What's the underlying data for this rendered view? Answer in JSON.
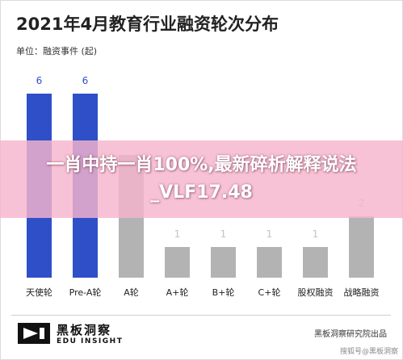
{
  "chart_data": {
    "type": "bar",
    "title": "2021年4月教育行业融资轮次分布",
    "unit_label": "单位：融资事件 (起)",
    "categories": [
      "天使轮",
      "Pre-A轮",
      "A轮",
      "A+轮",
      "B+轮",
      "C+轮",
      "股权融资",
      "战略融资"
    ],
    "values": [
      6,
      6,
      4,
      1,
      1,
      1,
      1,
      2
    ],
    "value_labels": [
      "6",
      "6",
      "",
      "1",
      "1",
      "1",
      "1",
      "2"
    ],
    "ylim": [
      0,
      6
    ],
    "grid": false,
    "colors": {
      "highlight": "#2f4fc8",
      "normal": "#b3b3b3",
      "label_highlight": "#2f4fc8",
      "label_normal": "#c4c4c4"
    },
    "highlight_indices": [
      0,
      1
    ]
  },
  "banner": {
    "line1": "一肖中持一肖100%,最新碎析解释说法",
    "line2": "_VLF17.48"
  },
  "footer": {
    "logo_cn": "黑板洞察",
    "logo_en": "EDU INSIGHT",
    "source": "黑板洞察研究院出品",
    "watermark": "搜狐号@黑板洞察"
  }
}
